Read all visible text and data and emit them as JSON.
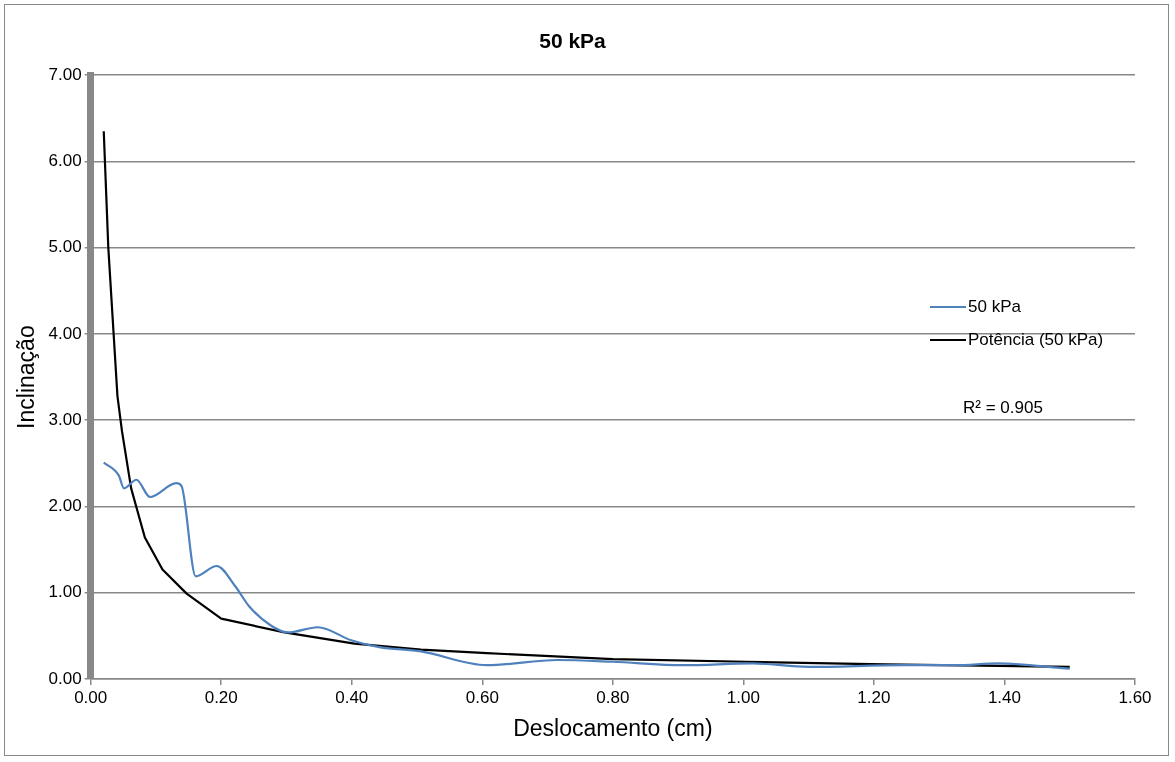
{
  "chart_data": {
    "type": "line",
    "title": "50 kPa",
    "xlabel": "Deslocamento (cm)",
    "ylabel": "Inclinação",
    "xlim": [
      0,
      1.6
    ],
    "xticks": [
      {
        "value": 0,
        "label": "0.00"
      },
      {
        "value": 0.2,
        "label": "0.20"
      },
      {
        "value": 0.4,
        "label": "0.40"
      },
      {
        "value": 0.6,
        "label": "0.60"
      },
      {
        "value": 0.8,
        "label": "0.80"
      },
      {
        "value": 1,
        "label": "1.00"
      },
      {
        "value": 1.2,
        "label": "1.20"
      },
      {
        "value": 1.4,
        "label": "1.40"
      },
      {
        "value": 1.6,
        "label": "1.60"
      }
    ],
    "ylim": [
      0,
      7
    ],
    "yticks": [
      {
        "value": 0,
        "label": "0.00"
      },
      {
        "value": 1,
        "label": "1.00"
      },
      {
        "value": 2,
        "label": "2.00"
      },
      {
        "value": 3,
        "label": "3.00"
      },
      {
        "value": 4,
        "label": "4.00"
      },
      {
        "value": 5,
        "label": "5.00"
      },
      {
        "value": 6,
        "label": "6.00"
      },
      {
        "value": 7,
        "label": "7.00"
      }
    ],
    "grid": "y",
    "legend": "right",
    "marker": "none",
    "line_style": "solid",
    "annotations": [
      "R² = 0.905"
    ],
    "series": [
      {
        "name": "50 kPa",
        "color": "#4f81bd",
        "x": [
          0.02,
          0.043,
          0.051,
          0.07,
          0.091,
          0.131,
          0.139,
          0.161,
          0.193,
          0.222,
          0.243,
          0.276,
          0.302,
          0.348,
          0.399,
          0.442,
          0.506,
          0.607,
          0.715,
          0.8,
          0.908,
          1.015,
          1.1,
          1.245,
          1.325,
          1.39,
          1.5
        ],
        "values": [
          2.51,
          2.36,
          2.21,
          2.31,
          2.11,
          2.27,
          2.24,
          1.19,
          1.31,
          1.07,
          0.84,
          0.62,
          0.54,
          0.6,
          0.45,
          0.37,
          0.32,
          0.16,
          0.22,
          0.2,
          0.16,
          0.18,
          0.14,
          0.16,
          0.16,
          0.18,
          0.12
        ]
      },
      {
        "name": "Potência (50 kPa)",
        "color": "#000000",
        "x": [
          0.02,
          0.027,
          0.041,
          0.048,
          0.062,
          0.083,
          0.11,
          0.147,
          0.2,
          0.297,
          0.404,
          0.506,
          0.607,
          0.8,
          1.004,
          1.217,
          1.5
        ],
        "values": [
          6.35,
          5.0,
          3.28,
          2.87,
          2.21,
          1.64,
          1.27,
          0.99,
          0.7,
          0.54,
          0.41,
          0.34,
          0.3,
          0.23,
          0.2,
          0.17,
          0.14
        ]
      }
    ]
  }
}
